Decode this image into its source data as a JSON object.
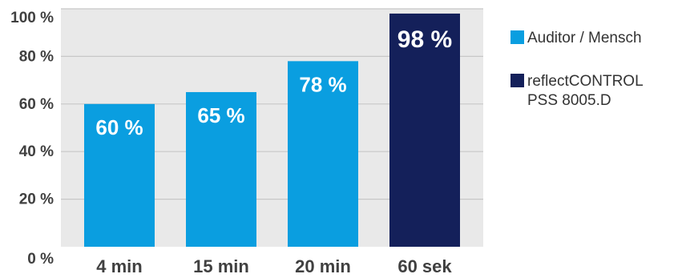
{
  "chart_data": {
    "type": "bar",
    "categories": [
      "4 min",
      "15 min",
      "20 min",
      "60 sek"
    ],
    "values": [
      60,
      65,
      78,
      98
    ],
    "data_labels": [
      "60 %",
      "65 %",
      "78 %",
      "98 %"
    ],
    "bar_series": [
      "Auditor / Mensch",
      "Auditor / Mensch",
      "Auditor / Mensch",
      "reflectCONTROL PSS 8005.D"
    ],
    "ylim": [
      0,
      100
    ],
    "yticks": [
      0,
      20,
      40,
      60,
      80,
      100
    ],
    "ytick_labels": [
      "0 %",
      "20 %",
      "40 %",
      "60 %",
      "80 %",
      "100 %"
    ],
    "grid": true,
    "legend_position": "right",
    "series": [
      {
        "name": "Auditor / Mensch",
        "name_lines": [
          "Auditor / Mensch"
        ],
        "color": "#0a9ee0"
      },
      {
        "name": "reflectCONTROL PSS 8005.D",
        "name_lines": [
          "reflectCONTROL",
          "PSS 8005.D"
        ],
        "color": "#14205a"
      }
    ],
    "plot_background": "#e9e9e9",
    "grid_color": "#c8c8c8"
  }
}
